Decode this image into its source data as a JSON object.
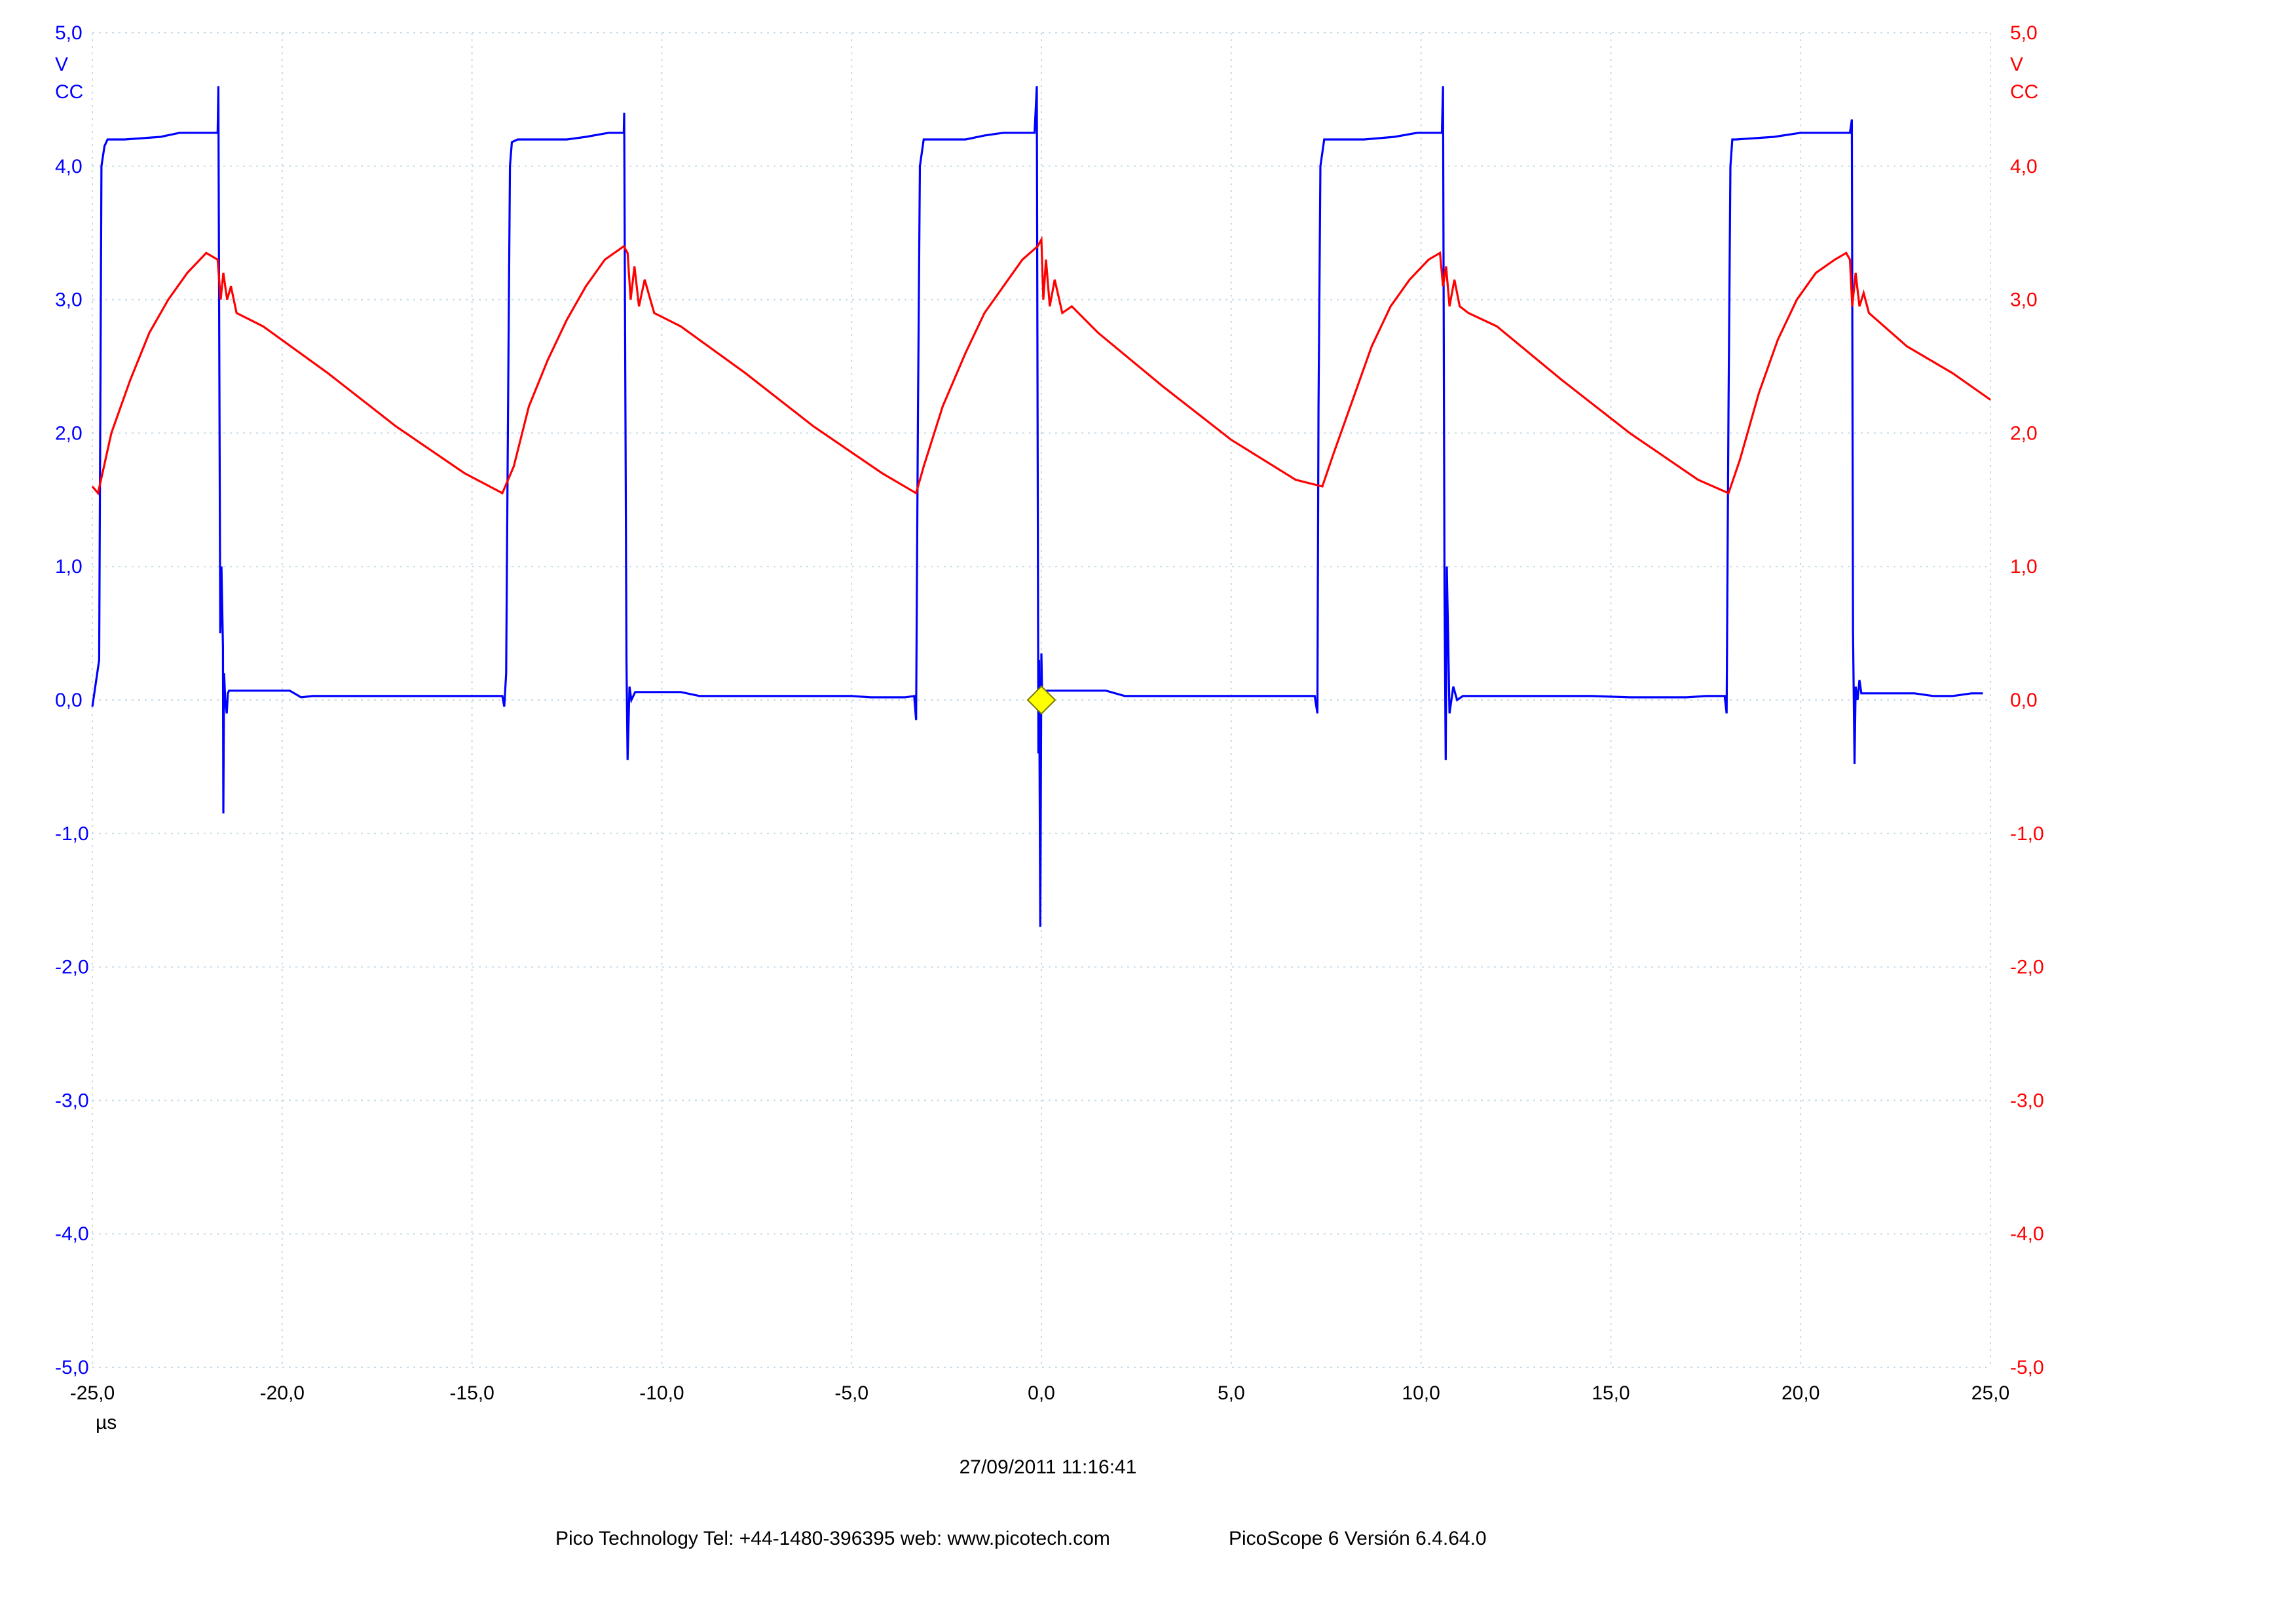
{
  "chart_data": {
    "type": "line",
    "x_unit": "µs",
    "x_range": [
      -25,
      25
    ],
    "x_ticks": [
      "-25,0",
      "-20,0",
      "-15,0",
      "-10,0",
      "-5,0",
      "0,0",
      "5,0",
      "10,0",
      "15,0",
      "20,0",
      "25,0"
    ],
    "y_range": [
      -5,
      5
    ],
    "y_ticks": [
      "5,0",
      "4,0",
      "3,0",
      "2,0",
      "1,0",
      "0,0",
      "-1,0",
      "-2,0",
      "-3,0",
      "-4,0",
      "-5,0"
    ],
    "grid": true,
    "left_axis": {
      "unit": "V",
      "coupling": "CC",
      "color": "#0000ff"
    },
    "right_axis": {
      "unit": "V",
      "coupling": "CC",
      "color": "#ff0000"
    },
    "trigger_marker": {
      "x": 0,
      "y": 0,
      "color": "#ffff00"
    },
    "series": [
      {
        "color": "#0000ff",
        "axis": "left",
        "x": [
          -25,
          -24.82,
          -24.79,
          -24.76,
          -24.68,
          -24.6,
          -24.15,
          -23.2,
          -22.7,
          -22.2,
          -21.7,
          -21.68,
          -21.63,
          -21.6,
          -21.56,
          -21.55,
          -21.53,
          -21.5,
          -21.46,
          -21.43,
          -21.4,
          -21.3,
          -19.8,
          -19.5,
          -19.2,
          -18.8,
          -18.5,
          -15,
          -14.2,
          -14.15,
          -14.1,
          -14.05,
          -14.0,
          -13.95,
          -13.8,
          -12.5,
          -12.0,
          -11.4,
          -11.0,
          -10.99,
          -10.93,
          -10.9,
          -10.85,
          -10.8,
          -10.7,
          -9.5,
          -9.0,
          -8.5,
          -8.0,
          -5,
          -4.5,
          -4.2,
          -3.6,
          -3.35,
          -3.3,
          -3.25,
          -3.2,
          -3.1,
          -2.0,
          -1.5,
          -1.0,
          -0.2,
          -0.18,
          -0.12,
          -0.08,
          -0.06,
          -0.03,
          0.0,
          0.02,
          0.05,
          0.1,
          0.2,
          1.7,
          2.2,
          2.7,
          3.0,
          6.3,
          7.0,
          7.2,
          7.27,
          7.3,
          7.35,
          7.45,
          8.5,
          9.3,
          9.9,
          10.55,
          10.58,
          10.62,
          10.65,
          10.68,
          10.75,
          10.85,
          10.95,
          11.1,
          12.5,
          13.5,
          14.5,
          15.5,
          16.5,
          17.0,
          17.5,
          18.0,
          18.05,
          18.1,
          18.15,
          18.2,
          18.3,
          19.3,
          20.0,
          20.5,
          21.3,
          21.35,
          21.38,
          21.42,
          21.45,
          21.5,
          21.55,
          21.6,
          21.7,
          22.0,
          23.0,
          23.5,
          24.0,
          24.5,
          24.8
        ],
        "y": [
          -0.05,
          0.3,
          2.2,
          4.0,
          4.15,
          4.2,
          4.2,
          4.22,
          4.25,
          4.25,
          4.25,
          4.6,
          0.5,
          1.0,
          0.4,
          -0.85,
          0.2,
          0.0,
          -0.1,
          0.05,
          0.07,
          0.07,
          0.07,
          0.02,
          0.03,
          0.03,
          0.03,
          0.03,
          0.03,
          -0.05,
          0.2,
          2.2,
          4.0,
          4.18,
          4.2,
          4.2,
          4.22,
          4.25,
          4.25,
          4.4,
          0.3,
          -0.45,
          0.1,
          0.0,
          0.06,
          0.06,
          0.03,
          0.03,
          0.03,
          0.03,
          0.02,
          0.02,
          0.02,
          0.03,
          -0.15,
          2.2,
          4.0,
          4.2,
          4.2,
          4.23,
          4.25,
          4.25,
          4.25,
          4.6,
          -0.4,
          0.3,
          -1.7,
          0.35,
          0.0,
          0.07,
          0.07,
          0.07,
          0.07,
          0.03,
          0.03,
          0.03,
          0.03,
          0.03,
          0.03,
          -0.1,
          2.2,
          4.0,
          4.2,
          4.2,
          4.22,
          4.25,
          4.25,
          4.6,
          0.8,
          -0.45,
          1.0,
          -0.1,
          0.1,
          0.0,
          0.03,
          0.03,
          0.03,
          0.03,
          0.02,
          0.02,
          0.02,
          0.03,
          0.03,
          -0.1,
          2.2,
          4.0,
          4.2,
          4.2,
          4.22,
          4.25,
          4.25,
          4.25,
          4.35,
          0.5,
          -0.48,
          0.1,
          0.0,
          0.15,
          0.05,
          0.05,
          0.05,
          0.05,
          0.03,
          0.03,
          0.05,
          0.05
        ]
      },
      {
        "color": "#ff0000",
        "axis": "right",
        "x": [
          -25,
          -24.85,
          -24.5,
          -24.0,
          -23.5,
          -23.0,
          -22.5,
          -22.0,
          -21.7,
          -21.62,
          -21.55,
          -21.45,
          -21.35,
          -21.2,
          -20.5,
          -18.8,
          -17.0,
          -15.2,
          -14.2,
          -13.9,
          -13.5,
          -13.0,
          -12.5,
          -12.0,
          -11.5,
          -11.0,
          -10.9,
          -10.82,
          -10.72,
          -10.6,
          -10.45,
          -10.2,
          -9.5,
          -7.8,
          -6.0,
          -4.2,
          -3.3,
          -3.1,
          -2.6,
          -2.0,
          -1.5,
          -1.0,
          -0.5,
          -0.1,
          0.0,
          0.05,
          0.12,
          0.22,
          0.35,
          0.55,
          0.8,
          1.5,
          3.2,
          5.0,
          6.7,
          7.4,
          7.7,
          8.2,
          8.7,
          9.2,
          9.7,
          10.2,
          10.5,
          10.58,
          10.66,
          10.75,
          10.88,
          11.02,
          11.25,
          12.0,
          13.7,
          15.5,
          17.3,
          18.1,
          18.4,
          18.9,
          19.4,
          19.9,
          20.4,
          20.9,
          21.2,
          21.3,
          21.36,
          21.45,
          21.55,
          21.66,
          21.8,
          22.0,
          22.8,
          24.0,
          25.0
        ],
        "y": [
          1.6,
          1.55,
          2.0,
          2.4,
          2.75,
          3.0,
          3.2,
          3.35,
          3.3,
          3.0,
          3.2,
          3.0,
          3.1,
          2.9,
          2.8,
          2.45,
          2.05,
          1.7,
          1.55,
          1.75,
          2.2,
          2.55,
          2.85,
          3.1,
          3.3,
          3.4,
          3.35,
          3.0,
          3.25,
          2.95,
          3.15,
          2.9,
          2.8,
          2.45,
          2.05,
          1.7,
          1.55,
          1.75,
          2.2,
          2.6,
          2.9,
          3.1,
          3.3,
          3.4,
          3.45,
          3.0,
          3.3,
          2.95,
          3.15,
          2.9,
          2.95,
          2.75,
          2.35,
          1.95,
          1.65,
          1.6,
          1.85,
          2.25,
          2.65,
          2.95,
          3.15,
          3.3,
          3.35,
          3.1,
          3.25,
          2.95,
          3.15,
          2.95,
          2.9,
          2.8,
          2.4,
          2.0,
          1.65,
          1.55,
          1.8,
          2.3,
          2.7,
          3.0,
          3.2,
          3.3,
          3.35,
          3.3,
          2.95,
          3.2,
          2.95,
          3.05,
          2.9,
          2.85,
          2.65,
          2.45,
          2.25
        ]
      }
    ]
  },
  "footer": {
    "timestamp": "27/09/2011 11:16:41",
    "company": "Pico Technology Tel: +44-1480-396395  web: www.picotech.com",
    "version": "PicoScope 6 Versión 6.4.64.0"
  }
}
